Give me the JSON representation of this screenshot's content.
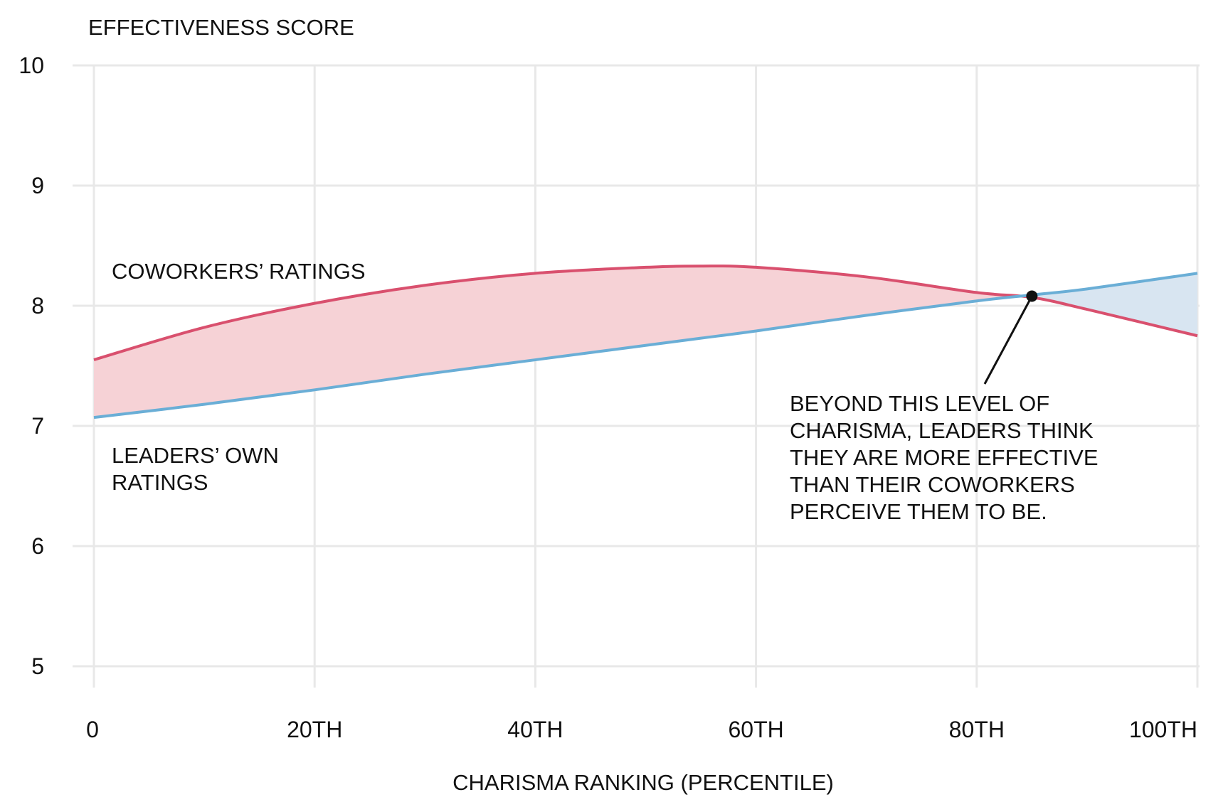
{
  "chart_data": {
    "type": "line",
    "title": "EFFECTIVENESS SCORE",
    "ylabel": "EFFECTIVENESS SCORE",
    "xlabel": "CHARISMA RANKING (PERCENTILE)",
    "xlim": [
      0,
      100
    ],
    "ylim": [
      5,
      10
    ],
    "grid": true,
    "x_ticks": [
      0,
      20,
      40,
      60,
      80,
      100
    ],
    "x_tick_labels": [
      "0",
      "20TH",
      "40TH",
      "60TH",
      "80TH",
      "100TH"
    ],
    "y_ticks": [
      5,
      6,
      7,
      8,
      9,
      10
    ],
    "y_tick_labels": [
      "5",
      "6",
      "7",
      "8",
      "9",
      "10"
    ],
    "x": [
      0,
      10,
      20,
      30,
      40,
      50,
      55,
      60,
      70,
      80,
      85,
      90,
      100
    ],
    "series": [
      {
        "name": "COWORKERS' RATINGS",
        "label_lines": [
          "COWORKERS’ RATINGS"
        ],
        "color": "#d9506e",
        "values": [
          7.55,
          7.82,
          8.02,
          8.17,
          8.27,
          8.32,
          8.33,
          8.32,
          8.24,
          8.11,
          8.07,
          7.97,
          7.75
        ]
      },
      {
        "name": "LEADERS' OWN RATINGS",
        "label_lines": [
          "LEADERS’ OWN",
          "RATINGS"
        ],
        "color": "#6aaed6",
        "values": [
          7.07,
          7.18,
          7.3,
          7.43,
          7.55,
          7.67,
          7.73,
          7.79,
          7.92,
          8.04,
          8.09,
          8.14,
          8.27
        ]
      }
    ],
    "fill_colors": {
      "coworkers_above": "#f6d2d6",
      "leaders_above": "#d8e5f1"
    },
    "annotation": {
      "point": {
        "x": 85,
        "y": 8.08
      },
      "lines": [
        "BEYOND THIS LEVEL OF",
        "CHARISMA, LEADERS THINK",
        "THEY ARE MORE EFFECTIVE",
        "THAN THEIR COWORKERS",
        "PERCEIVE THEM TO BE."
      ]
    }
  }
}
